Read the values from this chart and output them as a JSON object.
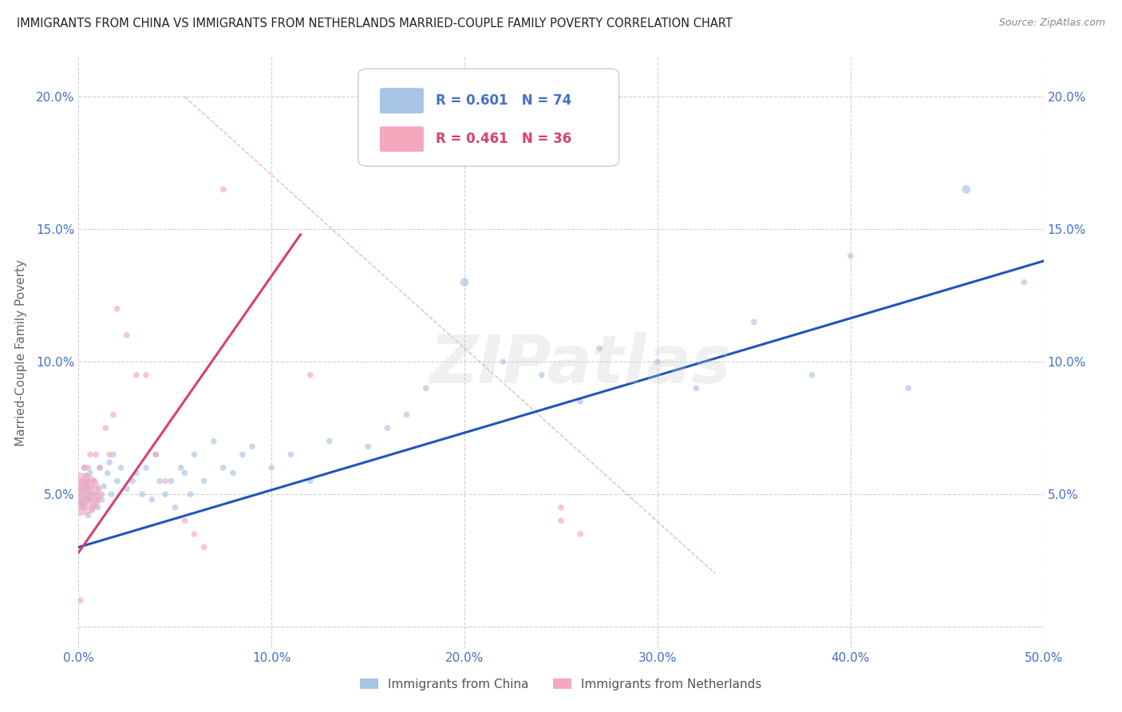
{
  "title": "IMMIGRANTS FROM CHINA VS IMMIGRANTS FROM NETHERLANDS MARRIED-COUPLE FAMILY POVERTY CORRELATION CHART",
  "source": "Source: ZipAtlas.com",
  "ylabel": "Married-Couple Family Poverty",
  "legend1_label": "Immigrants from China",
  "legend2_label": "Immigrants from Netherlands",
  "R_china": 0.601,
  "N_china": 74,
  "R_netherlands": 0.461,
  "N_netherlands": 36,
  "china_color": "#a8c4e6",
  "netherlands_color": "#f4a8be",
  "china_line_color": "#2255bb",
  "netherlands_line_color": "#d94070",
  "background_color": "#ffffff",
  "grid_color": "#d0d0d0",
  "xlim": [
    0.0,
    0.5
  ],
  "ylim": [
    -0.008,
    0.215
  ],
  "china_scatter_x": [
    0.001,
    0.002,
    0.002,
    0.003,
    0.003,
    0.003,
    0.004,
    0.004,
    0.004,
    0.005,
    0.005,
    0.005,
    0.006,
    0.006,
    0.007,
    0.007,
    0.007,
    0.008,
    0.008,
    0.009,
    0.009,
    0.01,
    0.01,
    0.011,
    0.012,
    0.013,
    0.015,
    0.016,
    0.017,
    0.018,
    0.02,
    0.022,
    0.025,
    0.028,
    0.03,
    0.033,
    0.035,
    0.038,
    0.04,
    0.042,
    0.045,
    0.048,
    0.05,
    0.053,
    0.055,
    0.058,
    0.06,
    0.065,
    0.07,
    0.075,
    0.08,
    0.085,
    0.09,
    0.1,
    0.11,
    0.12,
    0.13,
    0.15,
    0.16,
    0.17,
    0.18,
    0.2,
    0.22,
    0.24,
    0.26,
    0.27,
    0.3,
    0.32,
    0.35,
    0.38,
    0.4,
    0.43,
    0.46,
    0.49
  ],
  "china_scatter_y": [
    0.05,
    0.047,
    0.052,
    0.055,
    0.045,
    0.06,
    0.048,
    0.053,
    0.057,
    0.042,
    0.055,
    0.05,
    0.048,
    0.058,
    0.044,
    0.05,
    0.053,
    0.046,
    0.055,
    0.05,
    0.048,
    0.052,
    0.045,
    0.06,
    0.048,
    0.053,
    0.058,
    0.062,
    0.05,
    0.065,
    0.055,
    0.06,
    0.052,
    0.055,
    0.058,
    0.05,
    0.06,
    0.048,
    0.065,
    0.055,
    0.05,
    0.055,
    0.045,
    0.06,
    0.058,
    0.05,
    0.065,
    0.055,
    0.07,
    0.06,
    0.058,
    0.065,
    0.068,
    0.06,
    0.065,
    0.055,
    0.07,
    0.068,
    0.075,
    0.08,
    0.09,
    0.13,
    0.1,
    0.095,
    0.085,
    0.105,
    0.1,
    0.09,
    0.115,
    0.095,
    0.14,
    0.09,
    0.165,
    0.13
  ],
  "china_scatter_size": [
    500,
    30,
    30,
    30,
    30,
    30,
    30,
    30,
    30,
    30,
    30,
    30,
    30,
    30,
    30,
    30,
    30,
    30,
    30,
    30,
    30,
    30,
    30,
    30,
    30,
    30,
    30,
    30,
    30,
    30,
    30,
    30,
    30,
    30,
    30,
    30,
    30,
    30,
    30,
    30,
    30,
    30,
    30,
    30,
    30,
    30,
    30,
    30,
    30,
    30,
    30,
    30,
    30,
    30,
    30,
    30,
    30,
    30,
    30,
    30,
    30,
    60,
    30,
    30,
    30,
    30,
    30,
    30,
    30,
    30,
    30,
    30,
    60,
    30
  ],
  "netherlands_scatter_x": [
    0.001,
    0.001,
    0.002,
    0.002,
    0.003,
    0.003,
    0.003,
    0.004,
    0.004,
    0.005,
    0.005,
    0.006,
    0.006,
    0.007,
    0.008,
    0.009,
    0.01,
    0.011,
    0.012,
    0.014,
    0.016,
    0.018,
    0.02,
    0.025,
    0.03,
    0.035,
    0.04,
    0.045,
    0.055,
    0.06,
    0.065,
    0.075,
    0.12,
    0.25,
    0.25,
    0.26
  ],
  "netherlands_scatter_y": [
    0.05,
    0.01,
    0.045,
    0.055,
    0.048,
    0.052,
    0.06,
    0.053,
    0.048,
    0.055,
    0.06,
    0.05,
    0.065,
    0.045,
    0.055,
    0.065,
    0.048,
    0.06,
    0.05,
    0.075,
    0.065,
    0.08,
    0.12,
    0.11,
    0.095,
    0.095,
    0.065,
    0.055,
    0.04,
    0.035,
    0.03,
    0.165,
    0.095,
    0.045,
    0.04,
    0.035
  ],
  "netherlands_scatter_size": [
    1500,
    30,
    30,
    30,
    30,
    30,
    30,
    30,
    30,
    30,
    30,
    30,
    30,
    30,
    30,
    30,
    30,
    30,
    30,
    30,
    30,
    30,
    30,
    30,
    30,
    30,
    30,
    30,
    30,
    30,
    30,
    30,
    30,
    30,
    30,
    30
  ],
  "china_line_x": [
    0.0,
    0.5
  ],
  "china_line_y": [
    0.03,
    0.138
  ],
  "netherlands_line_x": [
    0.0,
    0.115
  ],
  "netherlands_line_y": [
    0.028,
    0.148
  ],
  "ref_line_x": [
    0.055,
    0.33
  ],
  "ref_line_y": [
    0.2,
    0.02
  ],
  "ytick_values": [
    0.0,
    0.05,
    0.1,
    0.15,
    0.2
  ],
  "ytick_labels": [
    "",
    "5.0%",
    "10.0%",
    "15.0%",
    "20.0%"
  ],
  "xtick_values": [
    0.0,
    0.1,
    0.2,
    0.3,
    0.4,
    0.5
  ],
  "xtick_labels": [
    "0.0%",
    "10.0%",
    "20.0%",
    "30.0%",
    "40.0%",
    "50.0%"
  ],
  "watermark": "ZIPatlas",
  "tick_color": "#4472c4"
}
